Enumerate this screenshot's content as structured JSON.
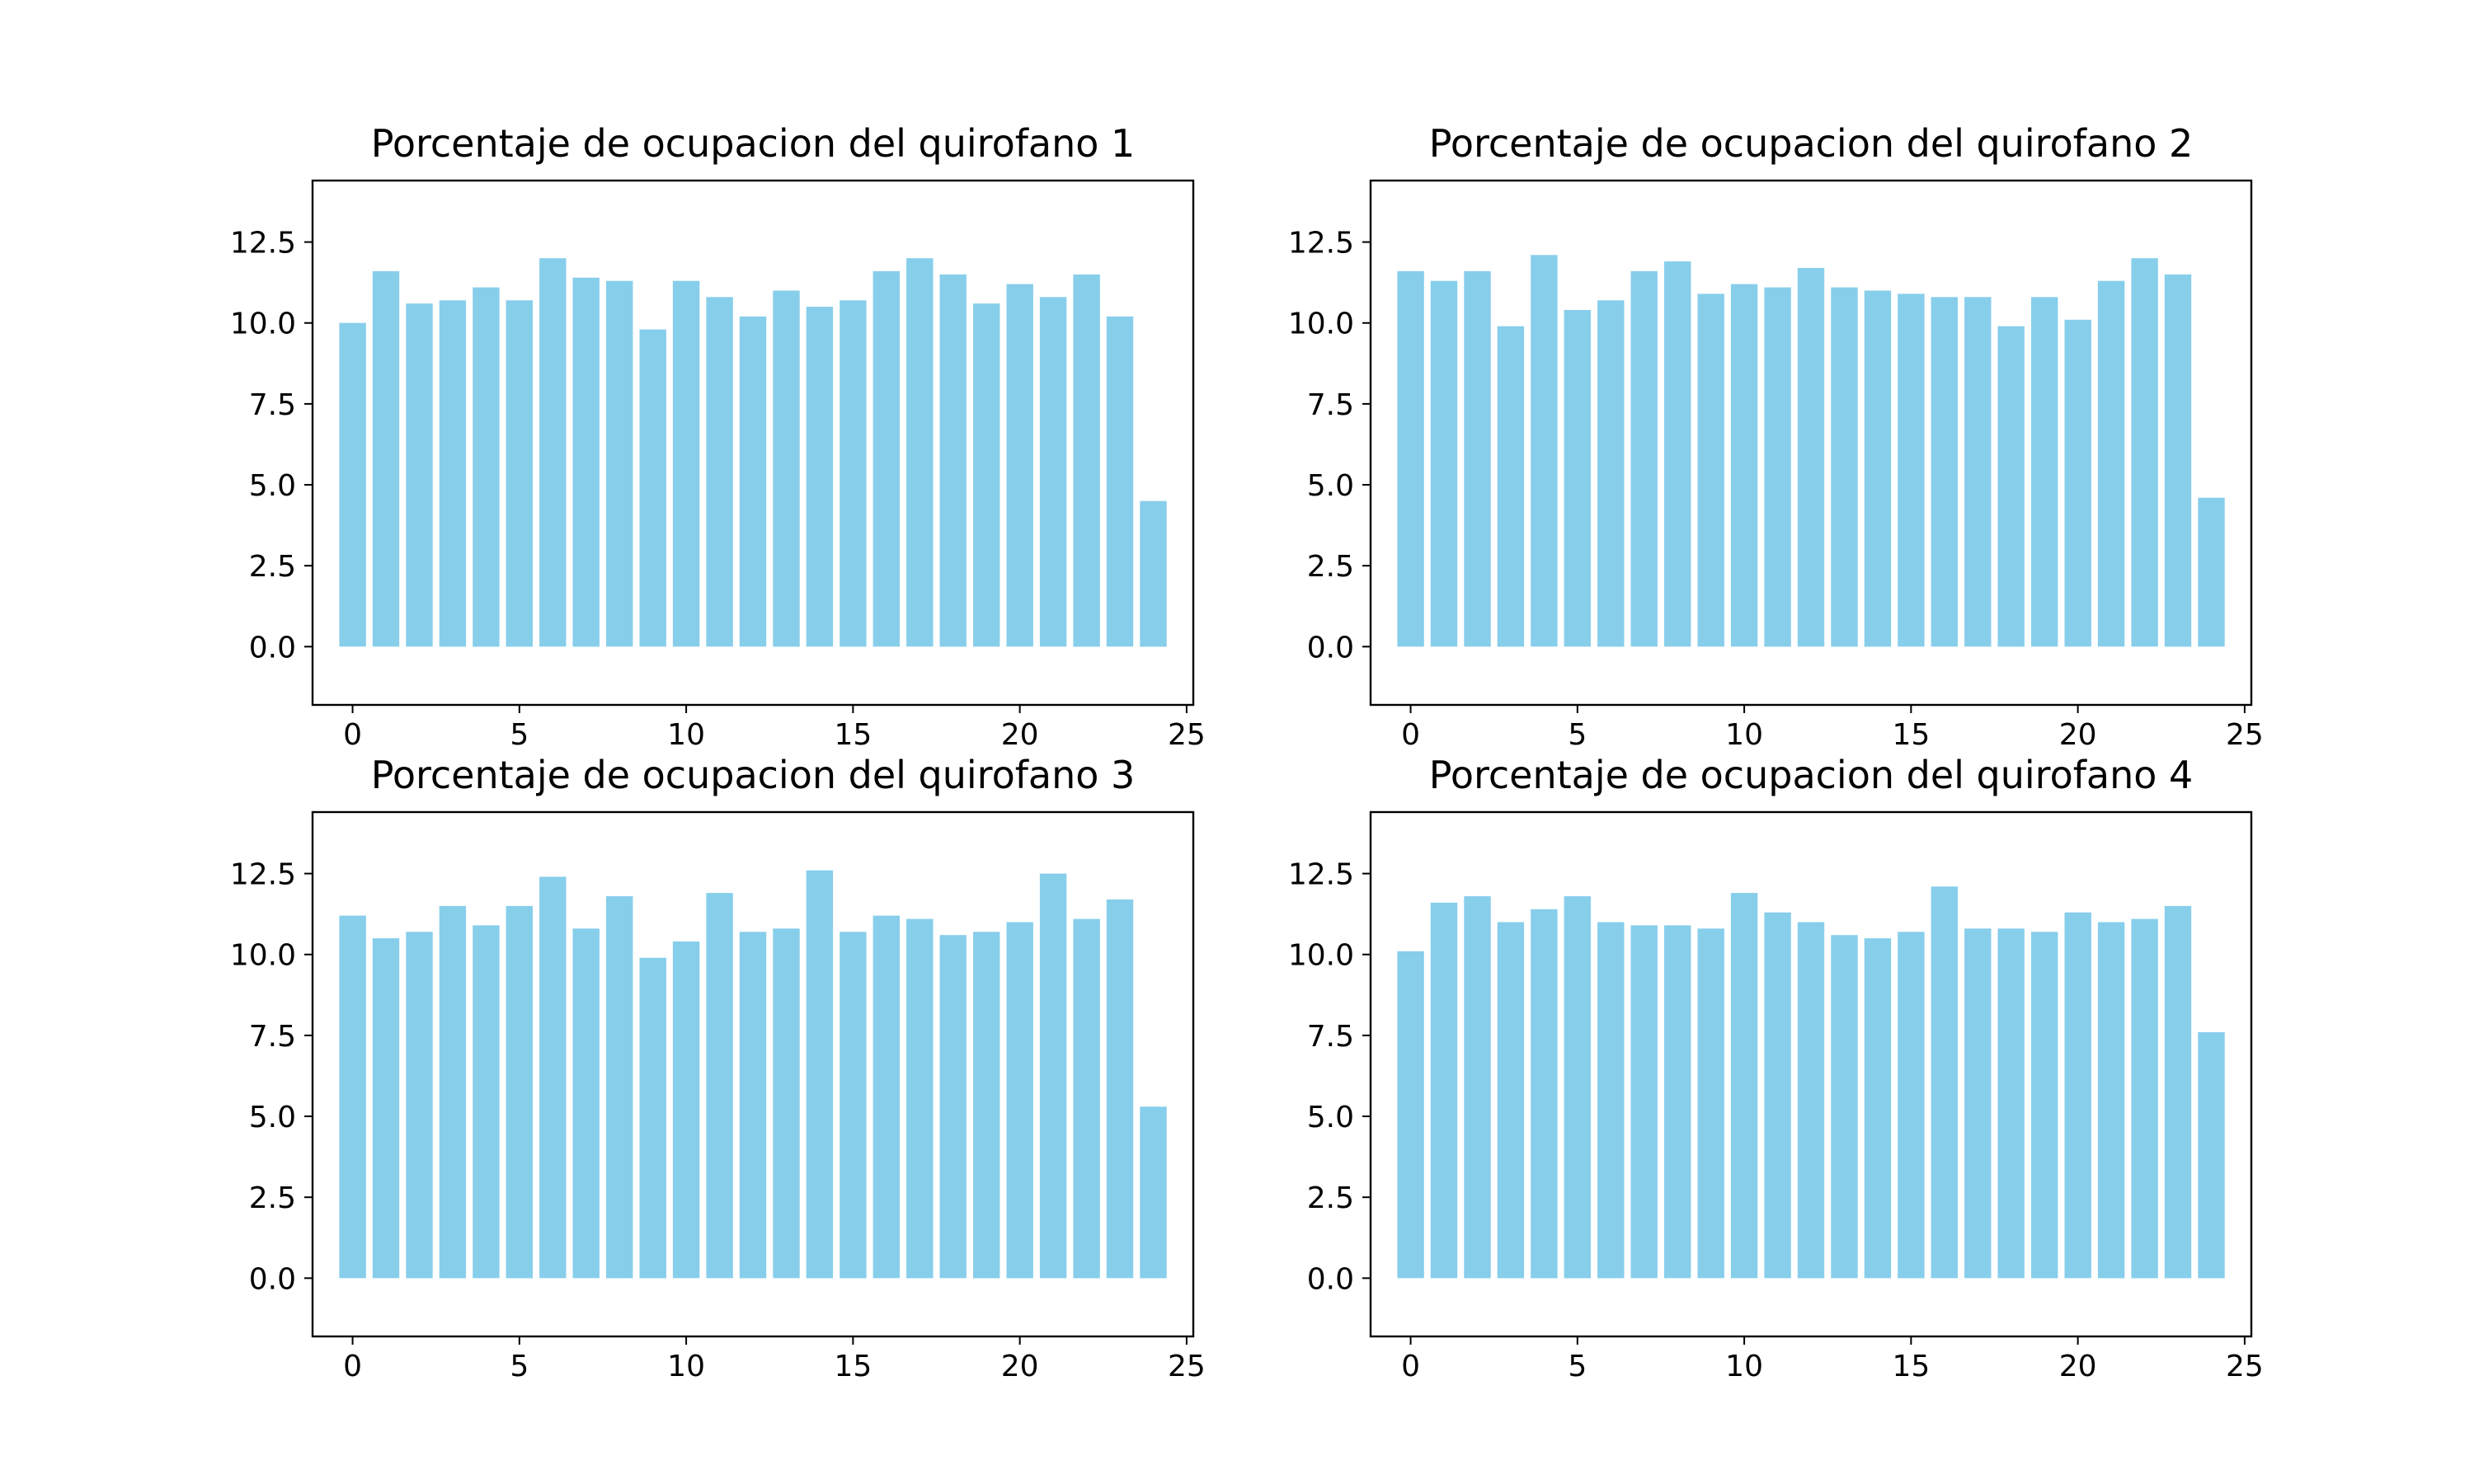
{
  "bar_color": "#87ceeb",
  "chart_data": [
    {
      "type": "bar",
      "title": "Porcentaje de ocupacion del quirofano 1",
      "x": [
        0,
        1,
        2,
        3,
        4,
        5,
        6,
        7,
        8,
        9,
        10,
        11,
        12,
        13,
        14,
        15,
        16,
        17,
        18,
        19,
        20,
        21,
        22,
        23,
        24
      ],
      "values": [
        10.0,
        11.6,
        10.6,
        10.7,
        11.1,
        10.7,
        12.0,
        11.4,
        11.3,
        9.8,
        11.3,
        10.8,
        10.2,
        11.0,
        10.5,
        10.7,
        11.6,
        12.0,
        11.5,
        10.6,
        11.2,
        10.8,
        11.5,
        10.2,
        4.5
      ],
      "xlabel": "",
      "ylabel": "",
      "xlim": [
        -1.2,
        25.2
      ],
      "ylim": [
        -1.8,
        14.4
      ],
      "xticks": [
        0,
        5,
        10,
        15,
        20,
        25
      ],
      "yticks": [
        0.0,
        2.5,
        5.0,
        7.5,
        10.0,
        12.5
      ],
      "xtick_labels": [
        "0",
        "5",
        "10",
        "15",
        "20",
        "25"
      ],
      "ytick_labels": [
        "0.0",
        "2.5",
        "5.0",
        "7.5",
        "10.0",
        "12.5"
      ],
      "grid": false
    },
    {
      "type": "bar",
      "title": "Porcentaje de ocupacion del quirofano 2",
      "x": [
        0,
        1,
        2,
        3,
        4,
        5,
        6,
        7,
        8,
        9,
        10,
        11,
        12,
        13,
        14,
        15,
        16,
        17,
        18,
        19,
        20,
        21,
        22,
        23,
        24
      ],
      "values": [
        11.6,
        11.3,
        11.6,
        9.9,
        12.1,
        10.4,
        10.7,
        11.6,
        11.9,
        10.9,
        11.2,
        11.1,
        11.7,
        11.1,
        11.0,
        10.9,
        10.8,
        10.8,
        9.9,
        10.8,
        10.1,
        11.3,
        12.0,
        11.5,
        4.6
      ],
      "xlabel": "",
      "ylabel": "",
      "xlim": [
        -1.2,
        25.2
      ],
      "ylim": [
        -1.8,
        14.4
      ],
      "xticks": [
        0,
        5,
        10,
        15,
        20,
        25
      ],
      "yticks": [
        0.0,
        2.5,
        5.0,
        7.5,
        10.0,
        12.5
      ],
      "xtick_labels": [
        "0",
        "5",
        "10",
        "15",
        "20",
        "25"
      ],
      "ytick_labels": [
        "0.0",
        "2.5",
        "5.0",
        "7.5",
        "10.0",
        "12.5"
      ],
      "grid": false
    },
    {
      "type": "bar",
      "title": "Porcentaje de ocupacion del quirofano 3",
      "x": [
        0,
        1,
        2,
        3,
        4,
        5,
        6,
        7,
        8,
        9,
        10,
        11,
        12,
        13,
        14,
        15,
        16,
        17,
        18,
        19,
        20,
        21,
        22,
        23,
        24
      ],
      "values": [
        11.2,
        10.5,
        10.7,
        11.5,
        10.9,
        11.5,
        12.4,
        10.8,
        11.8,
        9.9,
        10.4,
        11.9,
        10.7,
        10.8,
        12.6,
        10.7,
        11.2,
        11.1,
        10.6,
        10.7,
        11.0,
        12.5,
        11.1,
        11.7,
        5.3
      ],
      "xlabel": "",
      "ylabel": "",
      "xlim": [
        -1.2,
        25.2
      ],
      "ylim": [
        -1.8,
        14.4
      ],
      "xticks": [
        0,
        5,
        10,
        15,
        20,
        25
      ],
      "yticks": [
        0.0,
        2.5,
        5.0,
        7.5,
        10.0,
        12.5
      ],
      "xtick_labels": [
        "0",
        "5",
        "10",
        "15",
        "20",
        "25"
      ],
      "ytick_labels": [
        "0.0",
        "2.5",
        "5.0",
        "7.5",
        "10.0",
        "12.5"
      ],
      "grid": false
    },
    {
      "type": "bar",
      "title": "Porcentaje de ocupacion del quirofano 4",
      "x": [
        0,
        1,
        2,
        3,
        4,
        5,
        6,
        7,
        8,
        9,
        10,
        11,
        12,
        13,
        14,
        15,
        16,
        17,
        18,
        19,
        20,
        21,
        22,
        23,
        24
      ],
      "values": [
        10.1,
        11.6,
        11.8,
        11.0,
        11.4,
        11.8,
        11.0,
        10.9,
        10.9,
        10.8,
        11.9,
        11.3,
        11.0,
        10.6,
        10.5,
        10.7,
        12.1,
        10.8,
        10.8,
        10.7,
        11.3,
        11.0,
        11.1,
        11.5,
        7.6
      ],
      "xlabel": "",
      "ylabel": "",
      "xlim": [
        -1.2,
        25.2
      ],
      "ylim": [
        -1.8,
        14.4
      ],
      "xticks": [
        0,
        5,
        10,
        15,
        20,
        25
      ],
      "yticks": [
        0.0,
        2.5,
        5.0,
        7.5,
        10.0,
        12.5
      ],
      "xtick_labels": [
        "0",
        "5",
        "10",
        "15",
        "20",
        "25"
      ],
      "ytick_labels": [
        "0.0",
        "2.5",
        "5.0",
        "7.5",
        "10.0",
        "12.5"
      ],
      "grid": false
    }
  ]
}
